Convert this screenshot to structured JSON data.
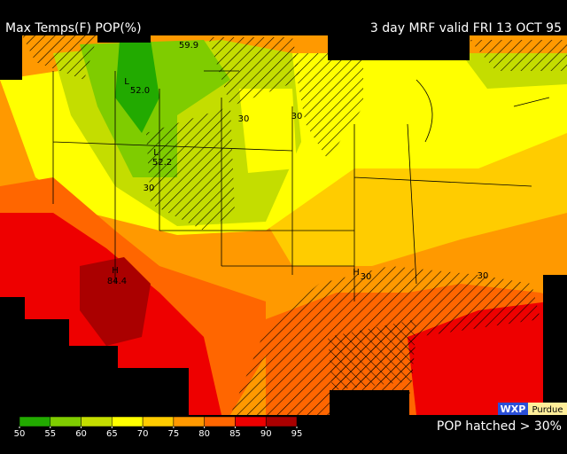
{
  "header": {
    "title": "Max Temps(F) POP(%)",
    "valid": "3 day MRF valid FRI 13 OCT 95"
  },
  "map_labels": [
    "59.9",
    "52.0",
    "52.2",
    "84.4",
    "L",
    "L",
    "H",
    "H",
    "30",
    "30",
    "30",
    "30",
    "30"
  ],
  "colorbar": {
    "ticks": [
      50,
      55,
      60,
      65,
      70,
      75,
      80,
      85,
      90,
      95
    ],
    "colors": [
      "#22aa00",
      "#7fcc00",
      "#c4dd00",
      "#ffff00",
      "#ffcc00",
      "#ff9900",
      "#ff6600",
      "#ee0000",
      "#aa0000"
    ]
  },
  "footer": {
    "note": "POP hatched > 30%",
    "logo": "WXP",
    "logo_sub": "Purdue"
  }
}
